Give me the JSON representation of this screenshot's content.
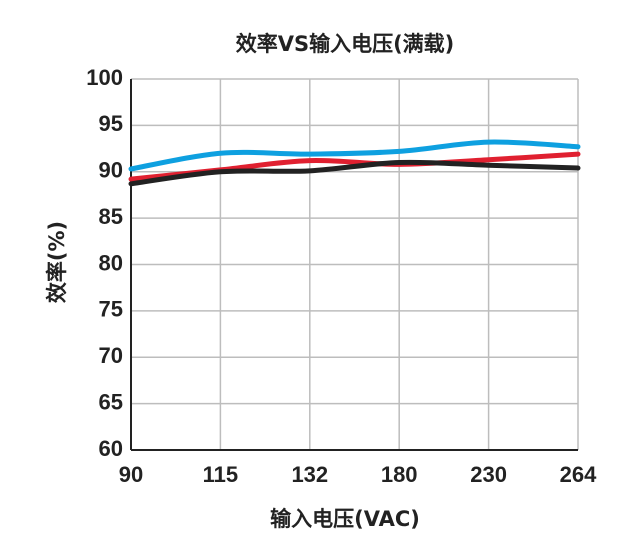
{
  "chart_data": {
    "type": "line",
    "title": "效率VS输入电压(满载)",
    "x_label": "输入电压(VAC)",
    "y_label": "效率(%)",
    "categories": [
      "90",
      "115",
      "132",
      "180",
      "230",
      "264"
    ],
    "series": [
      {
        "color": "#0ea0e0",
        "values": [
          90.3,
          92.0,
          91.9,
          92.2,
          93.2,
          92.7
        ]
      },
      {
        "color": "#e02030",
        "values": [
          89.2,
          90.2,
          91.2,
          90.8,
          91.3,
          91.9
        ]
      },
      {
        "color": "#222222",
        "values": [
          88.7,
          90.0,
          90.1,
          91.0,
          90.7,
          90.4
        ]
      }
    ],
    "ylim": [
      60,
      100
    ],
    "yticks": [
      60,
      65,
      70,
      75,
      80,
      85,
      90,
      95,
      100
    ],
    "grid": true
  }
}
